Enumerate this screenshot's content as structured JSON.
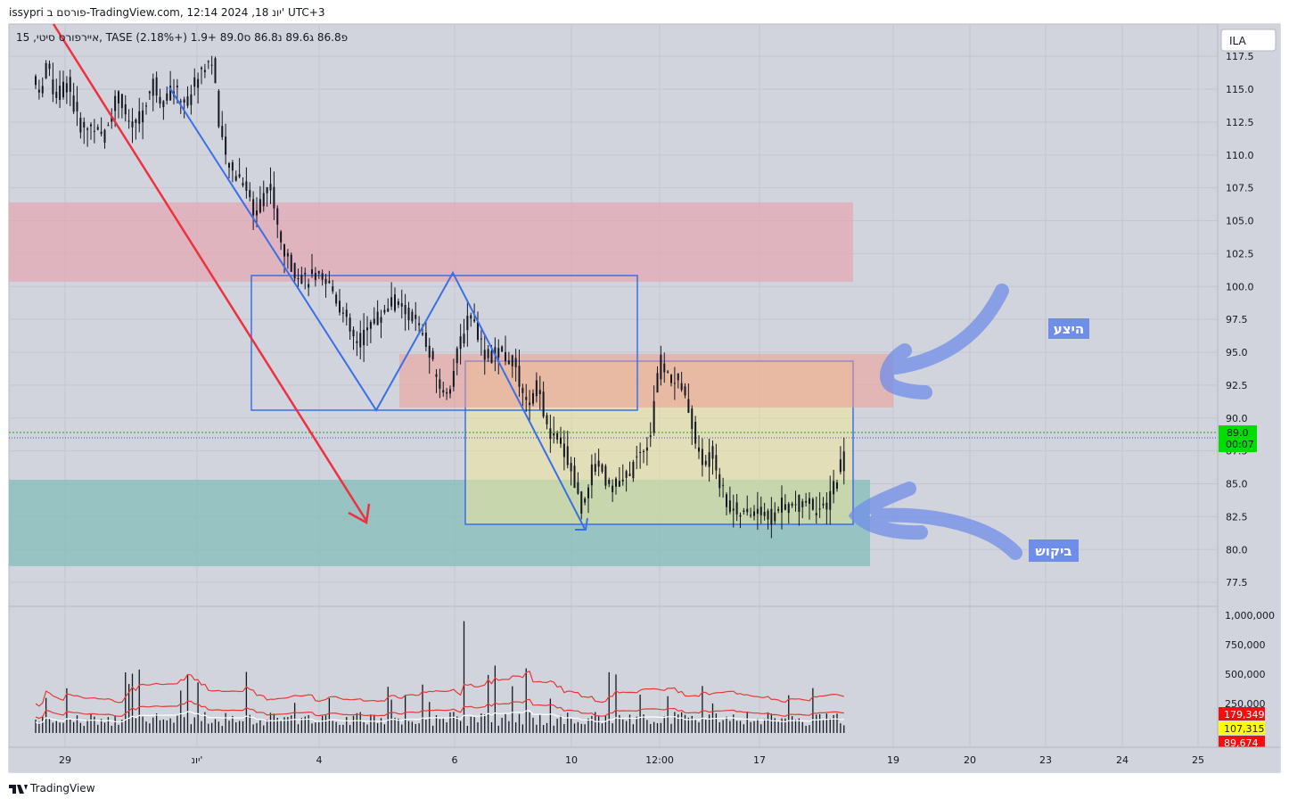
{
  "header": {
    "publish_line": "issypri פורסם ב-TradingView.com, 12:14 2024 ,18 יונ' UTC+3",
    "legend_line": "15 ,איירפורט סיטי, TASE  פ86.8  ג89.6  נ86.8  ס89.0  +1.9 (+2.18%)"
  },
  "currency_badge": "ILA",
  "footer": {
    "brand": "TradingView"
  },
  "annotations": {
    "supply_label": "היצע",
    "demand_label": "ביקוש"
  },
  "colors": {
    "background": "#d1d4dc",
    "grid": "#c3c6cf",
    "price_tag": "#00dd00",
    "volume_tag_1": "#f01010",
    "volume_tag_2": "#ffff00",
    "supply_zone": "#e8a3ae",
    "demand_zone": "#8ec1c0",
    "pattern_lines": "#3b6fe8",
    "trend_arrow": "#ee3040",
    "label_bg": "#6f8ee8"
  },
  "chart_data": {
    "type": "candlestick",
    "symbol": "TASE",
    "interval": "15",
    "ohlc": {
      "open": 86.8,
      "high": 89.6,
      "low": 86.8,
      "close": 89.0,
      "change": "+1.9 (+2.18%)"
    },
    "y_axis": {
      "ylim": [
        76.2,
        118.3
      ],
      "ticks": [
        "117.5",
        "115.0",
        "112.5",
        "110.0",
        "107.5",
        "105.0",
        "102.5",
        "100.0",
        "97.5",
        "95.0",
        "92.5",
        "90.0",
        "87.5",
        "85.0",
        "82.5",
        "80.0",
        "77.5"
      ]
    },
    "x_axis": {
      "ticks": [
        "29",
        "יונ'",
        "4",
        "6",
        "10",
        "12:00",
        "17",
        "19",
        "20",
        "23",
        "24",
        "25"
      ]
    },
    "last_price": {
      "value": "89.0",
      "countdown": "00:07"
    },
    "volume_axis": {
      "ylim": [
        0,
        1100000
      ],
      "ticks": [
        "1,000,000",
        "750,000",
        "500,000",
        "250,000"
      ]
    },
    "volume_tags": [
      "179,349",
      "107,315",
      "89,674"
    ],
    "price_path": [
      [
        0,
        116
      ],
      [
        8,
        114.5
      ],
      [
        16,
        117
      ],
      [
        24,
        115
      ],
      [
        32,
        114.5
      ],
      [
        40,
        116
      ],
      [
        50,
        113
      ],
      [
        60,
        111.8
      ],
      [
        70,
        112.5
      ],
      [
        80,
        111.2
      ],
      [
        90,
        113
      ],
      [
        100,
        115
      ],
      [
        110,
        112
      ],
      [
        120,
        112.5
      ],
      [
        130,
        113.8
      ],
      [
        140,
        115.5
      ],
      [
        150,
        114
      ],
      [
        160,
        115
      ],
      [
        170,
        114.5
      ],
      [
        180,
        114
      ],
      [
        190,
        116
      ],
      [
        200,
        117
      ],
      [
        210,
        117.2
      ],
      [
        216,
        112
      ],
      [
        226,
        109
      ],
      [
        236,
        108.5
      ],
      [
        246,
        108
      ],
      [
        256,
        105.5
      ],
      [
        266,
        107
      ],
      [
        276,
        107.8
      ],
      [
        286,
        103.5
      ],
      [
        296,
        102
      ],
      [
        306,
        101
      ],
      [
        316,
        100.5
      ],
      [
        326,
        100.8
      ],
      [
        336,
        100.2
      ],
      [
        346,
        100
      ],
      [
        356,
        98.5
      ],
      [
        366,
        96.8
      ],
      [
        376,
        95.5
      ],
      [
        386,
        96.8
      ],
      [
        396,
        97.5
      ],
      [
        406,
        98
      ],
      [
        416,
        99
      ],
      [
        426,
        98.2
      ],
      [
        436,
        98
      ],
      [
        446,
        97
      ],
      [
        456,
        95.5
      ],
      [
        466,
        93.5
      ],
      [
        476,
        91.8
      ],
      [
        486,
        93
      ],
      [
        496,
        96
      ],
      [
        506,
        98.2
      ],
      [
        516,
        96.5
      ],
      [
        526,
        94.5
      ],
      [
        536,
        95
      ],
      [
        546,
        94.8
      ],
      [
        556,
        94.3
      ],
      [
        566,
        92
      ],
      [
        576,
        90.8
      ],
      [
        586,
        92.8
      ],
      [
        596,
        89
      ],
      [
        606,
        88.2
      ],
      [
        616,
        87.5
      ],
      [
        626,
        85.5
      ],
      [
        636,
        83
      ],
      [
        646,
        85.8
      ],
      [
        656,
        86.5
      ],
      [
        666,
        85
      ],
      [
        676,
        84.8
      ],
      [
        686,
        85.2
      ],
      [
        696,
        86.5
      ],
      [
        706,
        87.5
      ],
      [
        716,
        88.8
      ],
      [
        720,
        91.5
      ],
      [
        726,
        94.5
      ],
      [
        736,
        93.2
      ],
      [
        746,
        92.8
      ],
      [
        756,
        92
      ],
      [
        766,
        88.8
      ],
      [
        776,
        86.2
      ],
      [
        786,
        87.8
      ],
      [
        796,
        85.2
      ],
      [
        806,
        83.2
      ],
      [
        816,
        83
      ],
      [
        826,
        82.5
      ],
      [
        836,
        83
      ],
      [
        846,
        82.8
      ],
      [
        856,
        82.3
      ],
      [
        866,
        83.5
      ],
      [
        876,
        83.2
      ],
      [
        886,
        83.5
      ],
      [
        896,
        83.8
      ],
      [
        906,
        83.2
      ],
      [
        916,
        82.8
      ],
      [
        926,
        84.5
      ],
      [
        936,
        86.5
      ],
      [
        946,
        89
      ]
    ],
    "zones": [
      {
        "name": "upper supply zone",
        "y": [
          100.5,
          106.5
        ],
        "x_span": "29 – 19"
      },
      {
        "name": "supply zone",
        "y": [
          90.8,
          95.0
        ],
        "x_span": "4 – 19"
      },
      {
        "name": "demand zone",
        "y": [
          78.8,
          85.4
        ],
        "x_span": "29 – 19"
      },
      {
        "name": "upper range box",
        "y": [
          90.6,
          101.0
        ],
        "x_span": "3 – 12:00"
      },
      {
        "name": "lower range box",
        "y": [
          82.0,
          94.3
        ],
        "x_span": "6 – 18"
      }
    ],
    "grid": true
  }
}
